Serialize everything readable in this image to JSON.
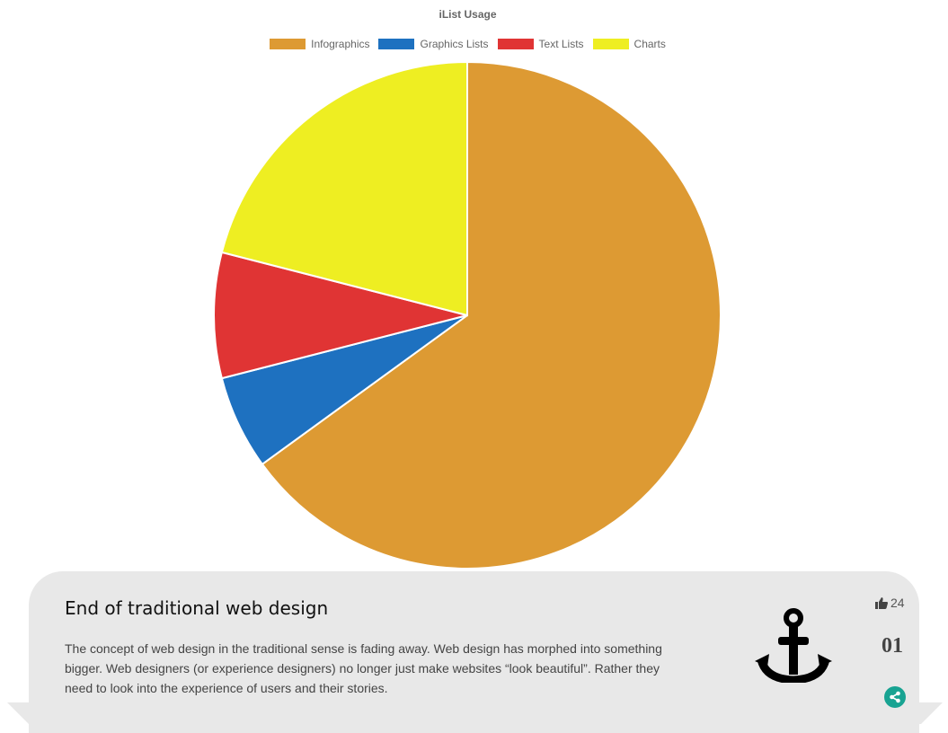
{
  "chart_data": {
    "type": "pie",
    "title": "iList Usage",
    "legend_position": "top",
    "categories": [
      "Infographics",
      "Graphics Lists",
      "Text Lists",
      "Charts"
    ],
    "values": [
      65,
      6,
      8,
      21
    ],
    "colors": [
      "#dd9a33",
      "#1e71c0",
      "#e03434",
      "#eeee22"
    ]
  },
  "card": {
    "title": "End of traditional web design",
    "description": "The concept of web design in the traditional sense is fading away. Web design has morphed into something bigger. Web designers (or experience designers) no longer just make websites “look beautiful”. Rather they need to look into the experience of users and their stories.",
    "likes": "24",
    "number": "01",
    "icon": "anchor-icon",
    "share_icon": "share-icon",
    "like_icon": "thumbs-up-icon",
    "share_color": "#18a392",
    "background": "#e8e8e8"
  }
}
